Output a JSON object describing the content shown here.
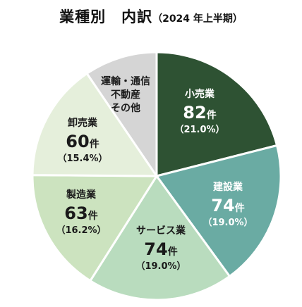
{
  "chart_data": {
    "type": "pie",
    "title": "業種別　内訳",
    "subtitle": "（2024 年上半期）",
    "unit": "件",
    "slices": [
      {
        "label": "小売業",
        "value": 82,
        "percent": "（21.0%）",
        "color": "#2e5233",
        "text_color": "#ffffff"
      },
      {
        "label": "建設業",
        "value": 74,
        "percent": "（19.0%）",
        "color": "#6aaba3",
        "text_color": "#ffffff"
      },
      {
        "label": "サービス業",
        "value": 74,
        "percent": "（19.0%）",
        "color": "#b9dcbe",
        "text_color": "#1a1a1a"
      },
      {
        "label": "製造業",
        "value": 63,
        "percent": "（16.2%）",
        "color": "#cce3bf",
        "text_color": "#1a1a1a"
      },
      {
        "label": "卸売業",
        "value": 60,
        "percent": "（15.4%）",
        "color": "#e5efdb",
        "text_color": "#1a1a1a"
      },
      {
        "label_lines": [
          "運輸・通信",
          "不動産",
          "その他"
        ],
        "value": 37,
        "percent": "",
        "color": "#d5d5d5",
        "text_color": "#1a1a1a"
      }
    ]
  }
}
